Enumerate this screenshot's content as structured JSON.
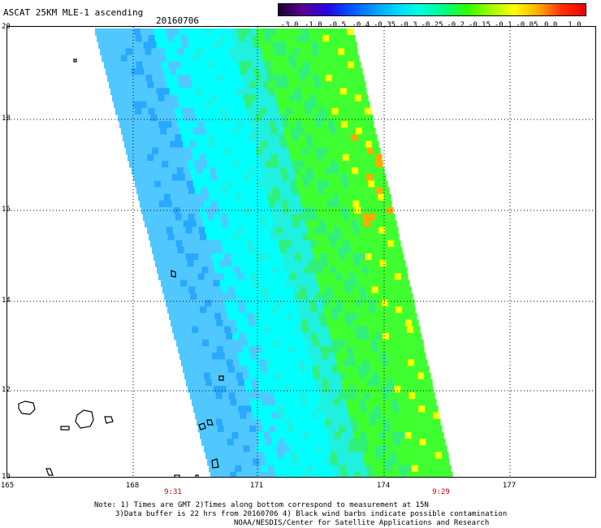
{
  "header": {
    "title": "ASCAT 25KM MLE-1 ascending",
    "date": "20160706"
  },
  "colorbar": {
    "labels": [
      "-3.0",
      "-1.0",
      "-0.5",
      "-0.4",
      "-0.35",
      "-0.3",
      "-0.25",
      "-0.2",
      "-0.15",
      "-0.1",
      "-0.05",
      "0.0",
      "1.0"
    ],
    "colors": [
      "#1a0030",
      "#5a0090",
      "#2a00e0",
      "#0050ff",
      "#0098ff",
      "#00d8ff",
      "#00ffdd",
      "#00ff88",
      "#30ff00",
      "#a0ff00",
      "#ffff00",
      "#ffaa00",
      "#ff3000",
      "#ee0000"
    ]
  },
  "map": {
    "y_labels": [
      "20",
      "18",
      "16",
      "14",
      "12",
      "10"
    ],
    "x_labels": [
      "165",
      "168",
      "171",
      "174",
      "177"
    ],
    "times": [
      "9:31",
      "9:29"
    ],
    "swath_colors": {
      "deep_blue": "#28a8ff",
      "blue": "#50c8ff",
      "cyan": "#00ffff",
      "aqua": "#20f0e0",
      "light_green": "#30f07a",
      "green": "#40ff30",
      "yellow": "#ffff00",
      "orange": "#ffaa00"
    }
  },
  "notes": {
    "line1": "Note: 1) Times are GMT 2)Times along bottom correspond to measurement at 15N",
    "line2": "3)Data buffer is 22 hrs from 20160706 4) Black wind barbs indicate possible contamination",
    "line3": "NOAA/NESDIS/Center for Satellite Applications and Research"
  }
}
